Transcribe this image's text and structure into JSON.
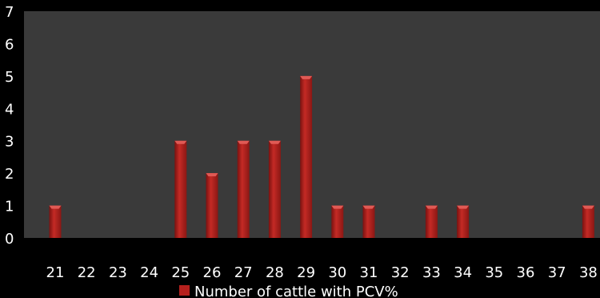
{
  "chart_data": {
    "type": "bar",
    "categories": [
      "21",
      "22",
      "23",
      "24",
      "25",
      "26",
      "27",
      "28",
      "29",
      "30",
      "31",
      "32",
      "33",
      "34",
      "35",
      "36",
      "37",
      "38"
    ],
    "series": [
      {
        "name": "Number of cattle with PCV%",
        "values": [
          1,
          0,
          0,
          0,
          3,
          2,
          3,
          3,
          5,
          1,
          1,
          0,
          1,
          1,
          0,
          0,
          0,
          1
        ]
      }
    ],
    "title": "",
    "xlabel": "",
    "ylabel": "",
    "ylim": [
      0,
      7
    ],
    "yticks": [
      "0",
      "1",
      "2",
      "3",
      "4",
      "5",
      "6",
      "7"
    ],
    "grid": false,
    "legend_position": "bottom",
    "colors": {
      "plot_background": "#3a3a3a",
      "page_background": "#000000",
      "bar": "#b5201d",
      "text": "#ffffff"
    }
  }
}
